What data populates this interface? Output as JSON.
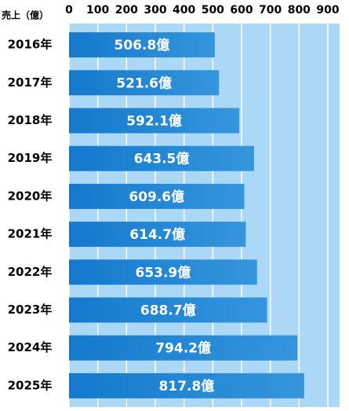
{
  "chart_data": {
    "type": "bar",
    "orientation": "horizontal",
    "x_label": "売上（億）",
    "categories": [
      "2016年",
      "2017年",
      "2018年",
      "2019年",
      "2020年",
      "2021年",
      "2022年",
      "2023年",
      "2024年",
      "2025年"
    ],
    "values": [
      506.8,
      521.6,
      592.1,
      643.5,
      609.6,
      614.7,
      653.9,
      688.7,
      794.2,
      817.8
    ],
    "value_labels": [
      "506.8億",
      "521.6億",
      "592.1億",
      "643.5億",
      "609.6億",
      "614.7億",
      "653.9億",
      "688.7億",
      "794.2億",
      "817.8億"
    ],
    "color": "#1f86d6",
    "xlim": [
      0,
      900
    ],
    "xticks": [
      0,
      100,
      200,
      300,
      400,
      500,
      600,
      700,
      800,
      900
    ],
    "grid": true
  }
}
